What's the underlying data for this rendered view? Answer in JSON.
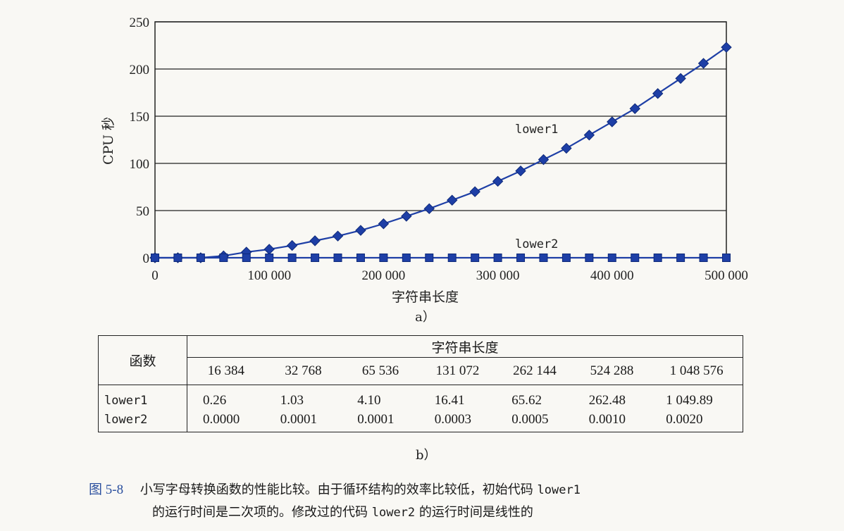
{
  "chart_data": {
    "type": "line",
    "x": [
      0,
      20000,
      40000,
      60000,
      80000,
      100000,
      120000,
      140000,
      160000,
      180000,
      200000,
      220000,
      240000,
      260000,
      280000,
      300000,
      320000,
      340000,
      360000,
      380000,
      400000,
      420000,
      440000,
      460000,
      480000,
      500000
    ],
    "series": [
      {
        "name": "lower1",
        "values": [
          0,
          0,
          0,
          2,
          6,
          9,
          13,
          18,
          23,
          29,
          36,
          44,
          52,
          61,
          70,
          81,
          92,
          104,
          116,
          130,
          144,
          158,
          174,
          190,
          206,
          223
        ]
      },
      {
        "name": "lower2",
        "values": [
          0,
          0,
          0,
          0,
          0,
          0,
          0,
          0,
          0,
          0,
          0,
          0,
          0,
          0,
          0,
          0,
          0,
          0,
          0,
          0,
          0,
          0,
          0,
          0,
          0,
          0
        ]
      }
    ],
    "xlim": [
      0,
      500000
    ],
    "ylim": [
      0,
      250
    ],
    "xticks": [
      "0",
      "100 000",
      "200 000",
      "300 000",
      "400 000",
      "500 000"
    ],
    "yticks": [
      "0",
      "50",
      "100",
      "150",
      "200",
      "250"
    ],
    "xlabel": "字符串长度",
    "ylabel": "CPU 秒",
    "subfigure_label": "a）",
    "grid": "horizontal",
    "series_color": "#1e3fa6"
  },
  "table": {
    "function_header": "函数",
    "length_header": "字符串长度",
    "lengths": [
      "16 384",
      "32 768",
      "65 536",
      "131 072",
      "262 144",
      "524 288",
      "1 048 576"
    ],
    "rows": [
      {
        "name": "lower1",
        "values": [
          "0.26",
          "1.03",
          "4.10",
          "16.41",
          "65.62",
          "262.48",
          "1 049.89"
        ]
      },
      {
        "name": "lower2",
        "values": [
          "0.0000",
          "0.0001",
          "0.0001",
          "0.0003",
          "0.0005",
          "0.0010",
          "0.0020"
        ]
      }
    ],
    "subfigure_label": "b）"
  },
  "caption": {
    "figure_number": "图 5-8",
    "text1": "小写字母转换函数的性能比较。由于循环结构的效率比较低，初始代码",
    "code1": "lower1",
    "text2": "的运行时间是二次项的。修改过的代码",
    "code2": "lower2",
    "text3": "的运行时间是线性的"
  }
}
